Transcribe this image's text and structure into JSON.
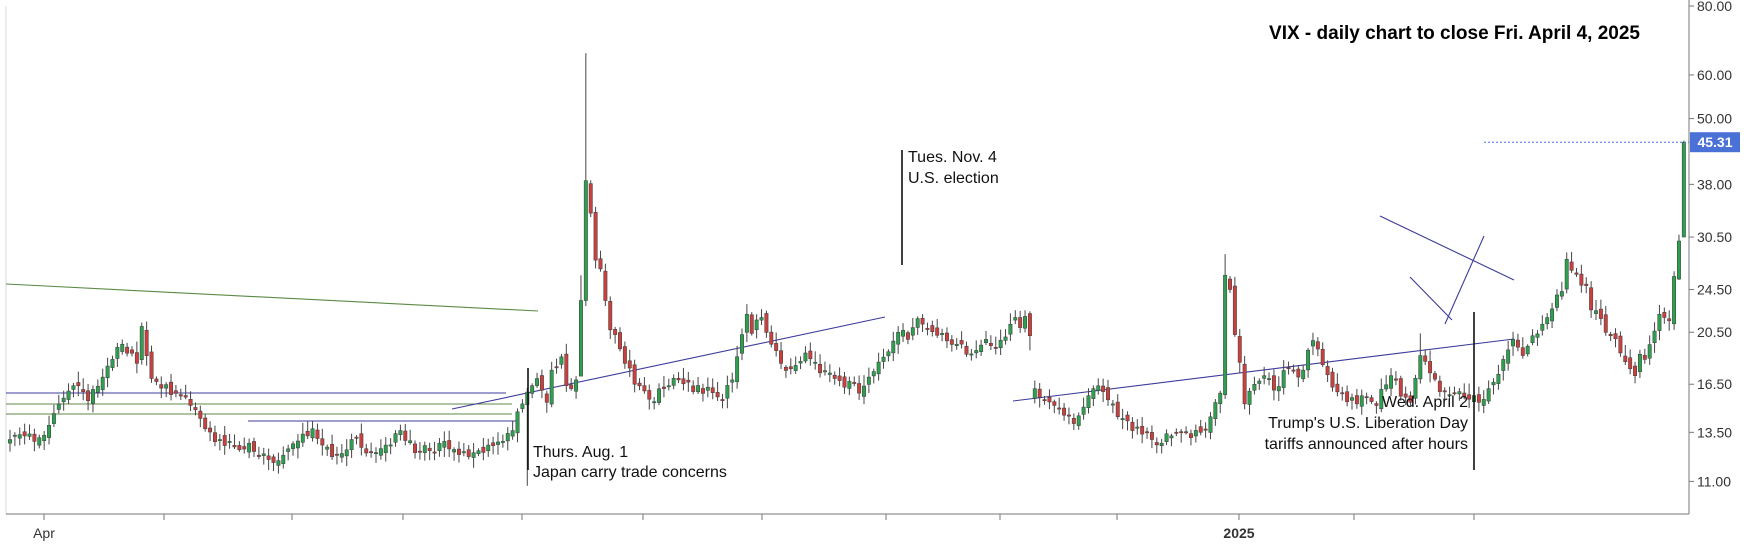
{
  "chart_data": {
    "type": "candlestick",
    "title": "VIX - daily chart to close Fri. April 4, 2025",
    "last_price_label": "45.31",
    "y_axis": {
      "scale": "log",
      "range": [
        9.6,
        80
      ],
      "ticks": [
        "80.00",
        "60.00",
        "50.00",
        "38.00",
        "30.50",
        "24.50",
        "20.50",
        "16.50",
        "13.50",
        "11.00"
      ]
    },
    "x_axis": {
      "ticks": [
        {
          "label": "Apr",
          "bold": false
        },
        {
          "label": "",
          "bold": false
        },
        {
          "label": "",
          "bold": false
        },
        {
          "label": "",
          "bold": false
        },
        {
          "label": "",
          "bold": false
        },
        {
          "label": "",
          "bold": false
        },
        {
          "label": "",
          "bold": false
        },
        {
          "label": "",
          "bold": false
        },
        {
          "label": "",
          "bold": false
        },
        {
          "label": "",
          "bold": false
        },
        {
          "label": "2025",
          "bold": true
        },
        {
          "label": "",
          "bold": false
        },
        {
          "label": "",
          "bold": false
        }
      ]
    },
    "grid": false,
    "colors": {
      "up": "#2e9e4f",
      "down": "#c8413f",
      "wick": "#444444",
      "trend_blue": "#3c3c9c",
      "trend_green": "#5c8a45",
      "price_tag": "#4a72d6",
      "annotation": "#111111"
    },
    "annotations": [
      {
        "lines": [
          "Thurs. Aug. 1",
          "Japan carry trade concerns"
        ]
      },
      {
        "lines": [
          "Tues. Nov. 4",
          "U.S. election"
        ]
      },
      {
        "lines": [
          "Wed. April 2",
          "Trump's U.S. Liberation Day",
          "tariffs announced after hours"
        ]
      }
    ],
    "series": [
      {
        "type": "candlestick",
        "anchors": [
          [
            0,
            13.1
          ],
          [
            3,
            13.3
          ],
          [
            5,
            13.0
          ],
          [
            6,
            13.2
          ],
          [
            9,
            14.6
          ],
          [
            13,
            16.4
          ],
          [
            16,
            15.4
          ],
          [
            20,
            17.8
          ],
          [
            23,
            19.5
          ],
          [
            26,
            18.0
          ],
          [
            27,
            21.0
          ],
          [
            29,
            16.9
          ],
          [
            33,
            15.8
          ],
          [
            37,
            15.1
          ],
          [
            40,
            13.7
          ],
          [
            43,
            13.1
          ],
          [
            46,
            12.7
          ],
          [
            49,
            12.9
          ],
          [
            51,
            12.2
          ],
          [
            54,
            11.9
          ],
          [
            57,
            12.6
          ],
          [
            60,
            13.4
          ],
          [
            62,
            13.7
          ],
          [
            64,
            12.8
          ],
          [
            67,
            12.3
          ],
          [
            70,
            13.1
          ],
          [
            74,
            12.4
          ],
          [
            77,
            12.8
          ],
          [
            80,
            13.6
          ],
          [
            83,
            12.4
          ],
          [
            86,
            12.5
          ],
          [
            89,
            13.0
          ],
          [
            92,
            12.3
          ],
          [
            95,
            12.4
          ],
          [
            98,
            12.8
          ],
          [
            101,
            13.0
          ],
          [
            103,
            13.6
          ],
          [
            105,
            15.2
          ],
          [
            107,
            16.4
          ],
          [
            108,
            16.9
          ],
          [
            110,
            15.3
          ],
          [
            111,
            17.5
          ],
          [
            113,
            18.5
          ],
          [
            114,
            16.4
          ],
          [
            115,
            16.2
          ],
          [
            116,
            16.8
          ],
          [
            117,
            23.4
          ],
          [
            118,
            38.6
          ],
          [
            119,
            33.7
          ],
          [
            120,
            27.7
          ],
          [
            121,
            26.7
          ],
          [
            122,
            23.4
          ],
          [
            123,
            20.7
          ],
          [
            124,
            20.3
          ],
          [
            126,
            18.0
          ],
          [
            128,
            16.5
          ],
          [
            131,
            15.5
          ],
          [
            134,
            16.2
          ],
          [
            137,
            16.8
          ],
          [
            140,
            16.0
          ],
          [
            143,
            16.3
          ],
          [
            146,
            15.4
          ],
          [
            148,
            16.8
          ],
          [
            150,
            20.3
          ],
          [
            151,
            22.1
          ],
          [
            152,
            20.4
          ],
          [
            154,
            21.8
          ],
          [
            156,
            19.5
          ],
          [
            158,
            18.0
          ],
          [
            160,
            17.6
          ],
          [
            163,
            18.8
          ],
          [
            166,
            17.3
          ],
          [
            169,
            16.9
          ],
          [
            171,
            16.3
          ],
          [
            173,
            16.6
          ],
          [
            174,
            15.9
          ],
          [
            176,
            17.0
          ],
          [
            178,
            18.1
          ],
          [
            180,
            18.9
          ],
          [
            182,
            20.5
          ],
          [
            184,
            19.9
          ],
          [
            186,
            21.7
          ],
          [
            188,
            20.8
          ],
          [
            191,
            20.4
          ],
          [
            194,
            19.5
          ],
          [
            196,
            18.7
          ],
          [
            198,
            19.0
          ],
          [
            200,
            19.9
          ],
          [
            202,
            19.2
          ],
          [
            204,
            20.1
          ],
          [
            206,
            21.8
          ],
          [
            207,
            20.9
          ],
          [
            208,
            21.9
          ],
          [
            209,
            20.2
          ],
          [
            210,
            16.2
          ],
          [
            212,
            15.4
          ],
          [
            214,
            15.1
          ],
          [
            216,
            14.5
          ],
          [
            218,
            14.0
          ],
          [
            220,
            15.0
          ],
          [
            222,
            16.2
          ],
          [
            224,
            16.0
          ],
          [
            226,
            15.2
          ],
          [
            228,
            14.3
          ],
          [
            230,
            13.6
          ],
          [
            232,
            13.4
          ],
          [
            234,
            13.1
          ],
          [
            236,
            12.9
          ],
          [
            238,
            13.3
          ],
          [
            240,
            13.5
          ],
          [
            242,
            13.2
          ],
          [
            244,
            13.5
          ],
          [
            246,
            14.4
          ],
          [
            248,
            15.9
          ],
          [
            249,
            26.0
          ],
          [
            250,
            24.5
          ],
          [
            251,
            20.3
          ],
          [
            253,
            15.2
          ],
          [
            255,
            16.5
          ],
          [
            257,
            17.1
          ],
          [
            259,
            16.1
          ],
          [
            262,
            17.6
          ],
          [
            264,
            17.0
          ],
          [
            267,
            19.8
          ],
          [
            269,
            17.9
          ],
          [
            271,
            16.3
          ],
          [
            273,
            15.9
          ],
          [
            276,
            15.2
          ],
          [
            278,
            15.6
          ],
          [
            280,
            15.1
          ],
          [
            283,
            17.1
          ],
          [
            285,
            15.7
          ],
          [
            287,
            15.3
          ],
          [
            289,
            18.6
          ],
          [
            291,
            17.3
          ],
          [
            293,
            16.0
          ],
          [
            295,
            15.8
          ],
          [
            297,
            16.0
          ],
          [
            299,
            15.5
          ],
          [
            301,
            15.3
          ],
          [
            303,
            16.2
          ],
          [
            305,
            17.2
          ],
          [
            306,
            18.3
          ],
          [
            308,
            19.9
          ],
          [
            310,
            18.6
          ],
          [
            312,
            20.2
          ],
          [
            314,
            21.2
          ],
          [
            316,
            22.6
          ],
          [
            318,
            24.3
          ],
          [
            319,
            27.8
          ],
          [
            321,
            26.1
          ],
          [
            323,
            24.9
          ],
          [
            324,
            22.5
          ],
          [
            326,
            21.7
          ],
          [
            328,
            20.2
          ],
          [
            330,
            18.8
          ],
          [
            332,
            17.6
          ],
          [
            333,
            17.1
          ],
          [
            334,
            18.7
          ],
          [
            335,
            18.3
          ],
          [
            337,
            20.6
          ],
          [
            338,
            22.1
          ],
          [
            339,
            21.8
          ],
          [
            340,
            21.5
          ],
          [
            342,
            30.0
          ],
          [
            343,
            45.31
          ]
        ]
      }
    ]
  }
}
